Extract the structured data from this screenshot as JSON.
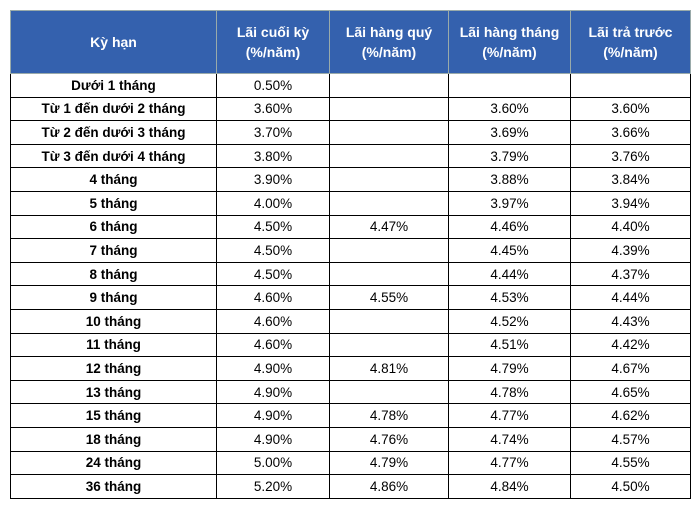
{
  "table": {
    "header": [
      [
        "Kỳ hạn"
      ],
      [
        "Lãi cuối kỳ",
        "(%/năm)"
      ],
      [
        "Lãi hàng quý",
        "(%/năm)"
      ],
      [
        "Lãi hàng tháng",
        "(%/năm)"
      ],
      [
        "Lãi trả trước",
        "(%/năm)"
      ]
    ],
    "rows": [
      [
        "Dưới 1 tháng",
        "0.50%",
        null,
        null,
        null
      ],
      [
        "Từ 1 đến dưới 2 tháng",
        "3.60%",
        null,
        "3.60%",
        "3.60%"
      ],
      [
        "Từ 2 đến dưới 3 tháng",
        "3.70%",
        null,
        "3.69%",
        "3.66%"
      ],
      [
        "Từ 3 đến dưới 4 tháng",
        "3.80%",
        null,
        "3.79%",
        "3.76%"
      ],
      [
        "4 tháng",
        "3.90%",
        null,
        "3.88%",
        "3.84%"
      ],
      [
        "5 tháng",
        "4.00%",
        null,
        "3.97%",
        "3.94%"
      ],
      [
        "6 tháng",
        "4.50%",
        "4.47%",
        "4.46%",
        "4.40%"
      ],
      [
        "7 tháng",
        "4.50%",
        null,
        "4.45%",
        "4.39%"
      ],
      [
        "8 tháng",
        "4.50%",
        null,
        "4.44%",
        "4.37%"
      ],
      [
        "9 tháng",
        "4.60%",
        "4.55%",
        "4.53%",
        "4.44%"
      ],
      [
        "10 tháng",
        "4.60%",
        null,
        "4.52%",
        "4.43%"
      ],
      [
        "11 tháng",
        "4.60%",
        null,
        "4.51%",
        "4.42%"
      ],
      [
        "12 tháng",
        "4.90%",
        "4.81%",
        "4.79%",
        "4.67%"
      ],
      [
        "13 tháng",
        "4.90%",
        null,
        "4.78%",
        "4.65%"
      ],
      [
        "15 tháng",
        "4.90%",
        "4.78%",
        "4.77%",
        "4.62%"
      ],
      [
        "18 tháng",
        "4.90%",
        "4.76%",
        "4.74%",
        "4.57%"
      ],
      [
        "24 tháng",
        "5.00%",
        "4.79%",
        "4.77%",
        "4.55%"
      ],
      [
        "36 tháng",
        "5.20%",
        "4.86%",
        "4.84%",
        "4.50%"
      ]
    ]
  }
}
